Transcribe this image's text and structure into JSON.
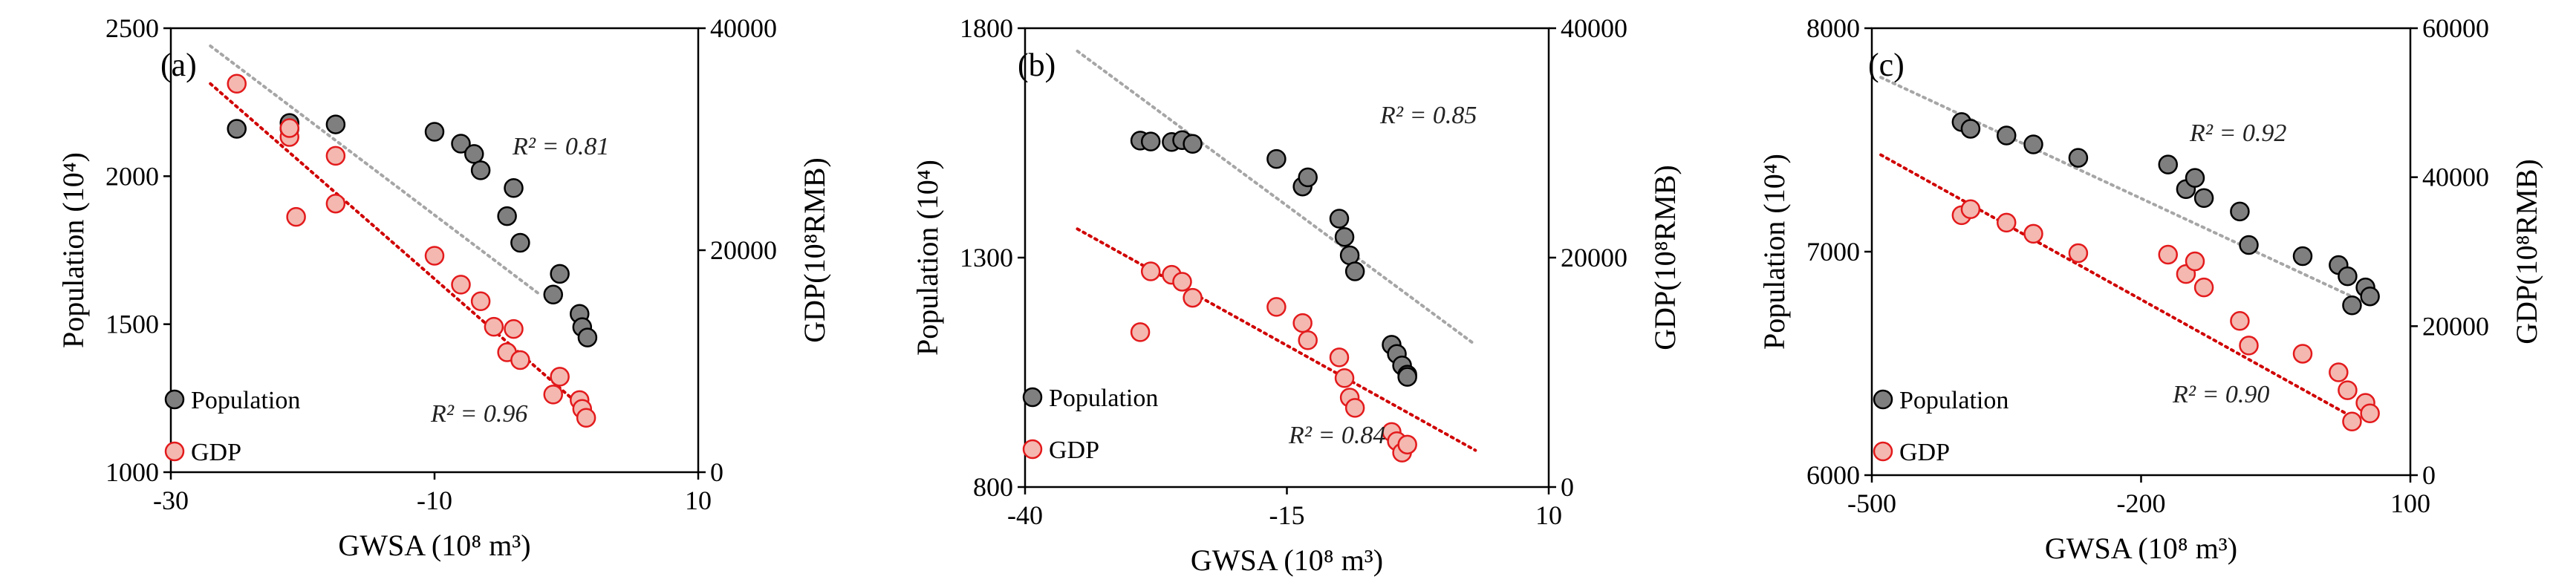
{
  "chart_data": [
    {
      "type": "scatter",
      "panel_label": "(a)",
      "xlabel": "GWSA (10⁸ m³)",
      "ylabel_left": "Population (10⁴)",
      "ylabel_right": "GDP(10⁸RMB)",
      "xlim": [
        -30,
        10
      ],
      "xticks": [
        "-30",
        "-10",
        "10"
      ],
      "ylim_left": [
        1000,
        2500
      ],
      "yticks_left": [
        "1000",
        "1500",
        "2000",
        "2500"
      ],
      "ylim_right": [
        0,
        40000
      ],
      "yticks_right": [
        "0",
        "20000",
        "40000"
      ],
      "legend": [
        "Population",
        "GDP"
      ],
      "legend_position": "bottom-left",
      "grid": false,
      "series": [
        {
          "name": "Population",
          "axis": "left",
          "color": "#7f7f7f",
          "edge": "#000000",
          "trend_color": "#a6a6a6",
          "r2": "R² = 0.81",
          "trend": [
            [
              -27,
              2440
            ],
            [
              -2,
              1600
            ]
          ],
          "points": [
            [
              -25,
              2160
            ],
            [
              -21,
              2180
            ],
            [
              -21,
              2160
            ],
            [
              -17.5,
              2175
            ],
            [
              -10,
              2150
            ],
            [
              -8,
              2110
            ],
            [
              -7,
              2075
            ],
            [
              -6.5,
              2020
            ],
            [
              -4.5,
              1865
            ],
            [
              -4,
              1960
            ],
            [
              -3.5,
              1775
            ],
            [
              -1,
              1600
            ],
            [
              -0.5,
              1670
            ],
            [
              1,
              1535
            ],
            [
              1.2,
              1490
            ],
            [
              1.6,
              1455
            ]
          ]
        },
        {
          "name": "GDP",
          "axis": "right",
          "color": "#f4b8b0",
          "edge": "#e31a1c",
          "trend_color": "#d00000",
          "r2": "R² = 0.96",
          "trend": [
            [
              -27,
              35000
            ],
            [
              2,
              5000
            ]
          ],
          "points": [
            [
              -25,
              35000
            ],
            [
              -21,
              30200
            ],
            [
              -21,
              31000
            ],
            [
              -20.5,
              23000
            ],
            [
              -17.5,
              28500
            ],
            [
              -17.5,
              24200
            ],
            [
              -10,
              19500
            ],
            [
              -8,
              16900
            ],
            [
              -6.5,
              15400
            ],
            [
              -5.5,
              13100
            ],
            [
              -4.5,
              10800
            ],
            [
              -4,
              12900
            ],
            [
              -3.5,
              10100
            ],
            [
              -1,
              7000
            ],
            [
              -0.5,
              8600
            ],
            [
              1,
              6500
            ],
            [
              1.2,
              5700
            ],
            [
              1.5,
              4900
            ]
          ]
        }
      ]
    },
    {
      "type": "scatter",
      "panel_label": "(b)",
      "xlabel": "GWSA (10⁸ m³)",
      "ylabel_left": "Population (10⁴)",
      "ylabel_right": "GDP(10⁸RMB)",
      "xlim": [
        -40,
        10
      ],
      "xticks": [
        "-40",
        "-15",
        "10"
      ],
      "ylim_left": [
        800,
        1800
      ],
      "yticks_left": [
        "800",
        "1300",
        "1800"
      ],
      "ylim_right": [
        0,
        40000
      ],
      "yticks_right": [
        "0",
        "20000",
        "40000"
      ],
      "legend": [
        "Population",
        "GDP"
      ],
      "legend_position": "bottom-left",
      "grid": false,
      "series": [
        {
          "name": "Population",
          "axis": "left",
          "color": "#7f7f7f",
          "edge": "#000000",
          "trend_color": "#a6a6a6",
          "r2": "R² = 0.85",
          "trend": [
            [
              -35,
              1750
            ],
            [
              3,
              1110
            ]
          ],
          "points": [
            [
              -29,
              1555
            ],
            [
              -28,
              1553
            ],
            [
              -26,
              1552
            ],
            [
              -25,
              1556
            ],
            [
              -24,
              1548
            ],
            [
              -16,
              1515
            ],
            [
              -13.5,
              1455
            ],
            [
              -13,
              1475
            ],
            [
              -10,
              1385
            ],
            [
              -9.5,
              1345
            ],
            [
              -9,
              1305
            ],
            [
              -8.5,
              1270
            ],
            [
              -5,
              1110
            ],
            [
              -4.5,
              1090
            ],
            [
              -4,
              1065
            ],
            [
              -3.5,
              1045
            ],
            [
              -3.5,
              1040
            ]
          ]
        },
        {
          "name": "GDP",
          "axis": "right",
          "color": "#f4b8b0",
          "edge": "#e31a1c",
          "trend_color": "#d00000",
          "r2": "R² = 0.84",
          "trend": [
            [
              -35,
              22500
            ],
            [
              3,
              3200
            ]
          ],
          "points": [
            [
              -29,
              13500
            ],
            [
              -28,
              18800
            ],
            [
              -26,
              18500
            ],
            [
              -25,
              17900
            ],
            [
              -24,
              16500
            ],
            [
              -16,
              15700
            ],
            [
              -13.5,
              14300
            ],
            [
              -13,
              12800
            ],
            [
              -10,
              11300
            ],
            [
              -9.5,
              9500
            ],
            [
              -9,
              7800
            ],
            [
              -8.5,
              6900
            ],
            [
              -5,
              4800
            ],
            [
              -4.5,
              4000
            ],
            [
              -4,
              3000
            ],
            [
              -3.5,
              3700
            ]
          ]
        }
      ]
    },
    {
      "type": "scatter",
      "panel_label": "(c)",
      "xlabel": "GWSA (10⁸ m³)",
      "ylabel_left": "Population (10⁴)",
      "ylabel_right": "GDP(10⁸RMB)",
      "xlim": [
        -500,
        100
      ],
      "xticks": [
        "-500",
        "-200",
        "100"
      ],
      "ylim_left": [
        6000,
        8000
      ],
      "yticks_left": [
        "6000",
        "7000",
        "8000"
      ],
      "ylim_right": [
        0,
        60000
      ],
      "yticks_right": [
        "0",
        "20000",
        "40000",
        "60000"
      ],
      "legend": [
        "Population",
        "GDP"
      ],
      "legend_position": "bottom-left",
      "grid": false,
      "series": [
        {
          "name": "Population",
          "axis": "left",
          "color": "#7f7f7f",
          "edge": "#000000",
          "trend_color": "#a6a6a6",
          "r2": "R² = 0.92",
          "trend": [
            [
              -490,
              7780
            ],
            [
              40,
              6790
            ]
          ],
          "points": [
            [
              -400,
              7580
            ],
            [
              -390,
              7550
            ],
            [
              -350,
              7520
            ],
            [
              -320,
              7480
            ],
            [
              -270,
              7420
            ],
            [
              -170,
              7390
            ],
            [
              -150,
              7280
            ],
            [
              -140,
              7330
            ],
            [
              -130,
              7240
            ],
            [
              -90,
              7180
            ],
            [
              -80,
              7030
            ],
            [
              -20,
              6980
            ],
            [
              20,
              6940
            ],
            [
              30,
              6890
            ],
            [
              35,
              6760
            ],
            [
              50,
              6840
            ],
            [
              55,
              6800
            ]
          ]
        },
        {
          "name": "GDP",
          "axis": "right",
          "color": "#f4b8b0",
          "edge": "#e31a1c",
          "trend_color": "#d00000",
          "r2": "R² = 0.90",
          "trend": [
            [
              -490,
              43000
            ],
            [
              40,
              7500
            ]
          ],
          "points": [
            [
              -400,
              34900
            ],
            [
              -390,
              35700
            ],
            [
              -350,
              33900
            ],
            [
              -320,
              32400
            ],
            [
              -270,
              29800
            ],
            [
              -170,
              29600
            ],
            [
              -150,
              27000
            ],
            [
              -140,
              28700
            ],
            [
              -130,
              25200
            ],
            [
              -90,
              20700
            ],
            [
              -80,
              17400
            ],
            [
              -20,
              16300
            ],
            [
              20,
              13800
            ],
            [
              30,
              11400
            ],
            [
              35,
              7200
            ],
            [
              50,
              9700
            ],
            [
              55,
              8300
            ]
          ]
        }
      ]
    }
  ]
}
